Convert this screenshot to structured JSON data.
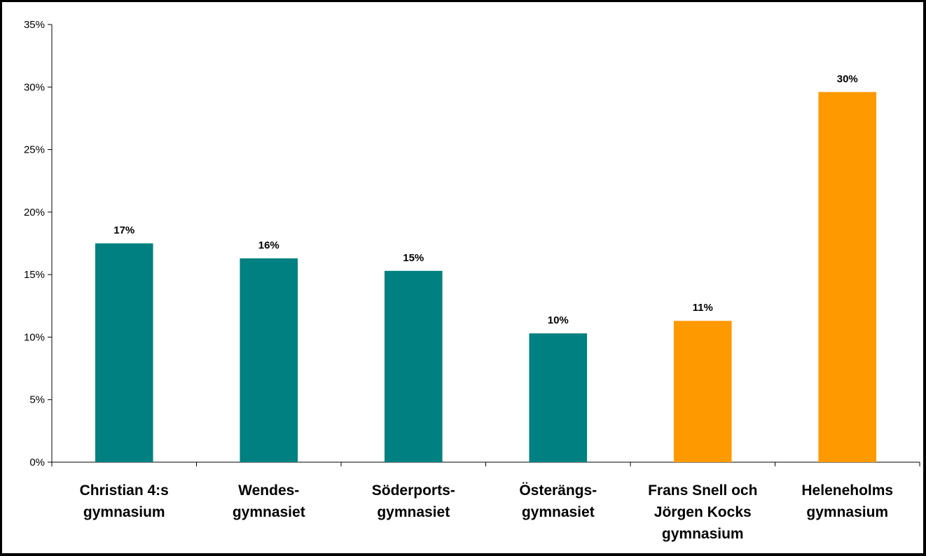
{
  "chart_data": {
    "type": "bar",
    "title": "",
    "xlabel": "",
    "ylabel": "",
    "ylim": [
      0,
      0.35
    ],
    "yticks": [
      0,
      0.05,
      0.1,
      0.15,
      0.2,
      0.25,
      0.3,
      0.35
    ],
    "ytick_labels": [
      "0%",
      "5%",
      "10%",
      "15%",
      "20%",
      "25%",
      "30%",
      "35%"
    ],
    "grid": false,
    "categories": [
      [
        "Christian 4:s",
        "gymnasium"
      ],
      [
        "Wendes-",
        "gymnasiet"
      ],
      [
        "Söderports-",
        "gymnasiet"
      ],
      [
        "Österängs-",
        "gymnasiet"
      ],
      [
        "Frans Snell och",
        "Jörgen Kocks",
        "gymnasium"
      ],
      [
        "Heleneholms",
        "gymnasium"
      ]
    ],
    "values": [
      0.175,
      0.163,
      0.153,
      0.103,
      0.113,
      0.296
    ],
    "data_labels": [
      "17%",
      "16%",
      "15%",
      "10%",
      "11%",
      "30%"
    ],
    "bar_colors": [
      "#008080",
      "#008080",
      "#008080",
      "#008080",
      "#FF9900",
      "#FF9900"
    ]
  }
}
